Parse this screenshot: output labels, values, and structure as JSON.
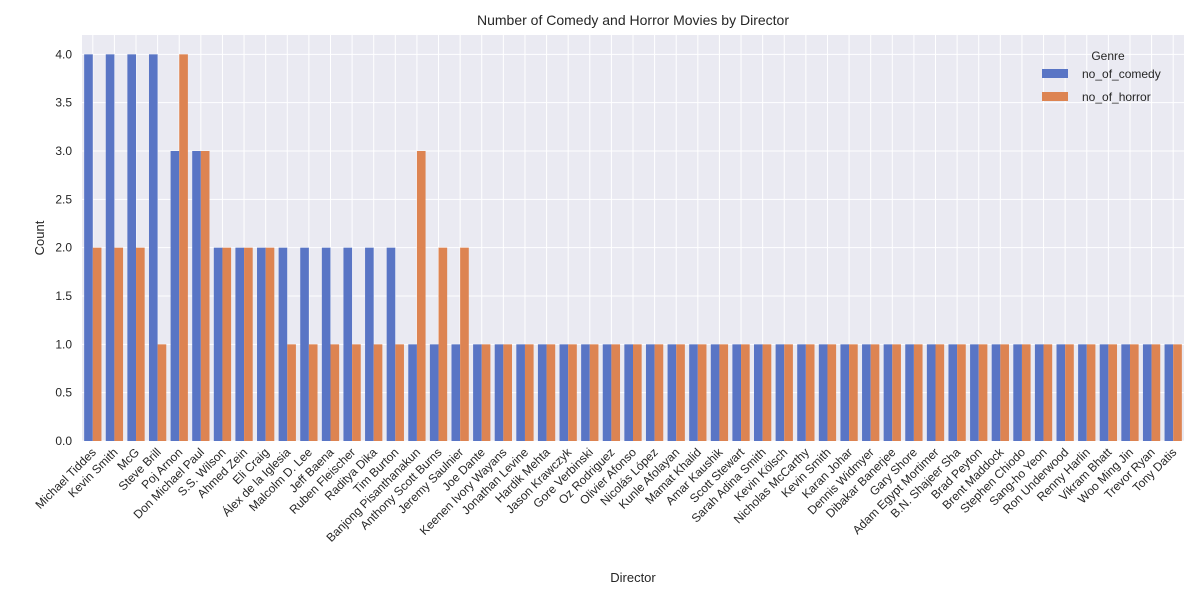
{
  "chart_data": {
    "type": "bar",
    "title": "Number of Comedy and Horror Movies by Director",
    "xlabel": "Director",
    "ylabel": "Count",
    "ylim": [
      0,
      4.2
    ],
    "yticks": [
      "0.0",
      "0.5",
      "1.0",
      "1.5",
      "2.0",
      "2.5",
      "3.0",
      "3.5",
      "4.0"
    ],
    "grid": true,
    "legend": {
      "title": "Genre",
      "placement": "top-right"
    },
    "categories": [
      "Michael Tiddes",
      "Kevin Smith",
      "McG",
      "Steve Brill",
      "Poj Arnon",
      "Don Michael Paul",
      "S.S. Wilson",
      "Ahmed Zein",
      "Eli Craig",
      "Álex de la Iglesia",
      "Malcolm D. Lee",
      "Jeff Baena",
      "Ruben Fleischer",
      "Raditya Dika",
      "Tim Burton",
      "Banjong Pisanthanakun",
      "Anthony Scott Burns",
      "Jeremy Saulnier",
      "Joe Dante",
      "Keenen Ivory Wayans",
      "Jonathan Levine",
      "Hardik Mehta",
      "Jason Krawczyk",
      "Gore Verbinski",
      "Oz Rodriguez",
      "Olivier Afonso",
      "Nicolás López",
      "Kunle Afolayan",
      "Mamat Khalid",
      "Amar Kaushik",
      "Scott Stewart",
      "Sarah Adina Smith",
      "Kevin Kölsch",
      "Nicholas McCarthy",
      "Kevin Smith",
      "Karan Johar",
      "Dennis Widmyer",
      "Dibakar Banerjee",
      "Gary Shore",
      "Adam Egypt Mortimer",
      "B.N. Shajeer Sha",
      "Brad Peyton",
      "Brent Maddock",
      "Stephen Chiodo",
      "Sang-ho Yeon",
      "Ron Underwood",
      "Renny Harlin",
      "Vikram Bhatt",
      "Woo Ming Jin",
      "Trevor Ryan",
      "Tony Datis"
    ],
    "series": [
      {
        "name": "no_of_comedy",
        "color": "#5975c5",
        "values": [
          4,
          4,
          4,
          4,
          3,
          3,
          2,
          2,
          2,
          2,
          2,
          2,
          2,
          2,
          2,
          1,
          1,
          1,
          1,
          1,
          1,
          1,
          1,
          1,
          1,
          1,
          1,
          1,
          1,
          1,
          1,
          1,
          1,
          1,
          1,
          1,
          1,
          1,
          1,
          1,
          1,
          1,
          1,
          1,
          1,
          1,
          1,
          1,
          1,
          1,
          1
        ]
      },
      {
        "name": "no_of_horror",
        "color": "#dd8452",
        "values": [
          2,
          2,
          2,
          1,
          4,
          3,
          2,
          2,
          2,
          1,
          1,
          1,
          1,
          1,
          1,
          3,
          2,
          2,
          1,
          1,
          1,
          1,
          1,
          1,
          1,
          1,
          1,
          1,
          1,
          1,
          1,
          1,
          1,
          1,
          1,
          1,
          1,
          1,
          1,
          1,
          1,
          1,
          1,
          1,
          1,
          1,
          1,
          1,
          1,
          1,
          1
        ]
      }
    ]
  }
}
